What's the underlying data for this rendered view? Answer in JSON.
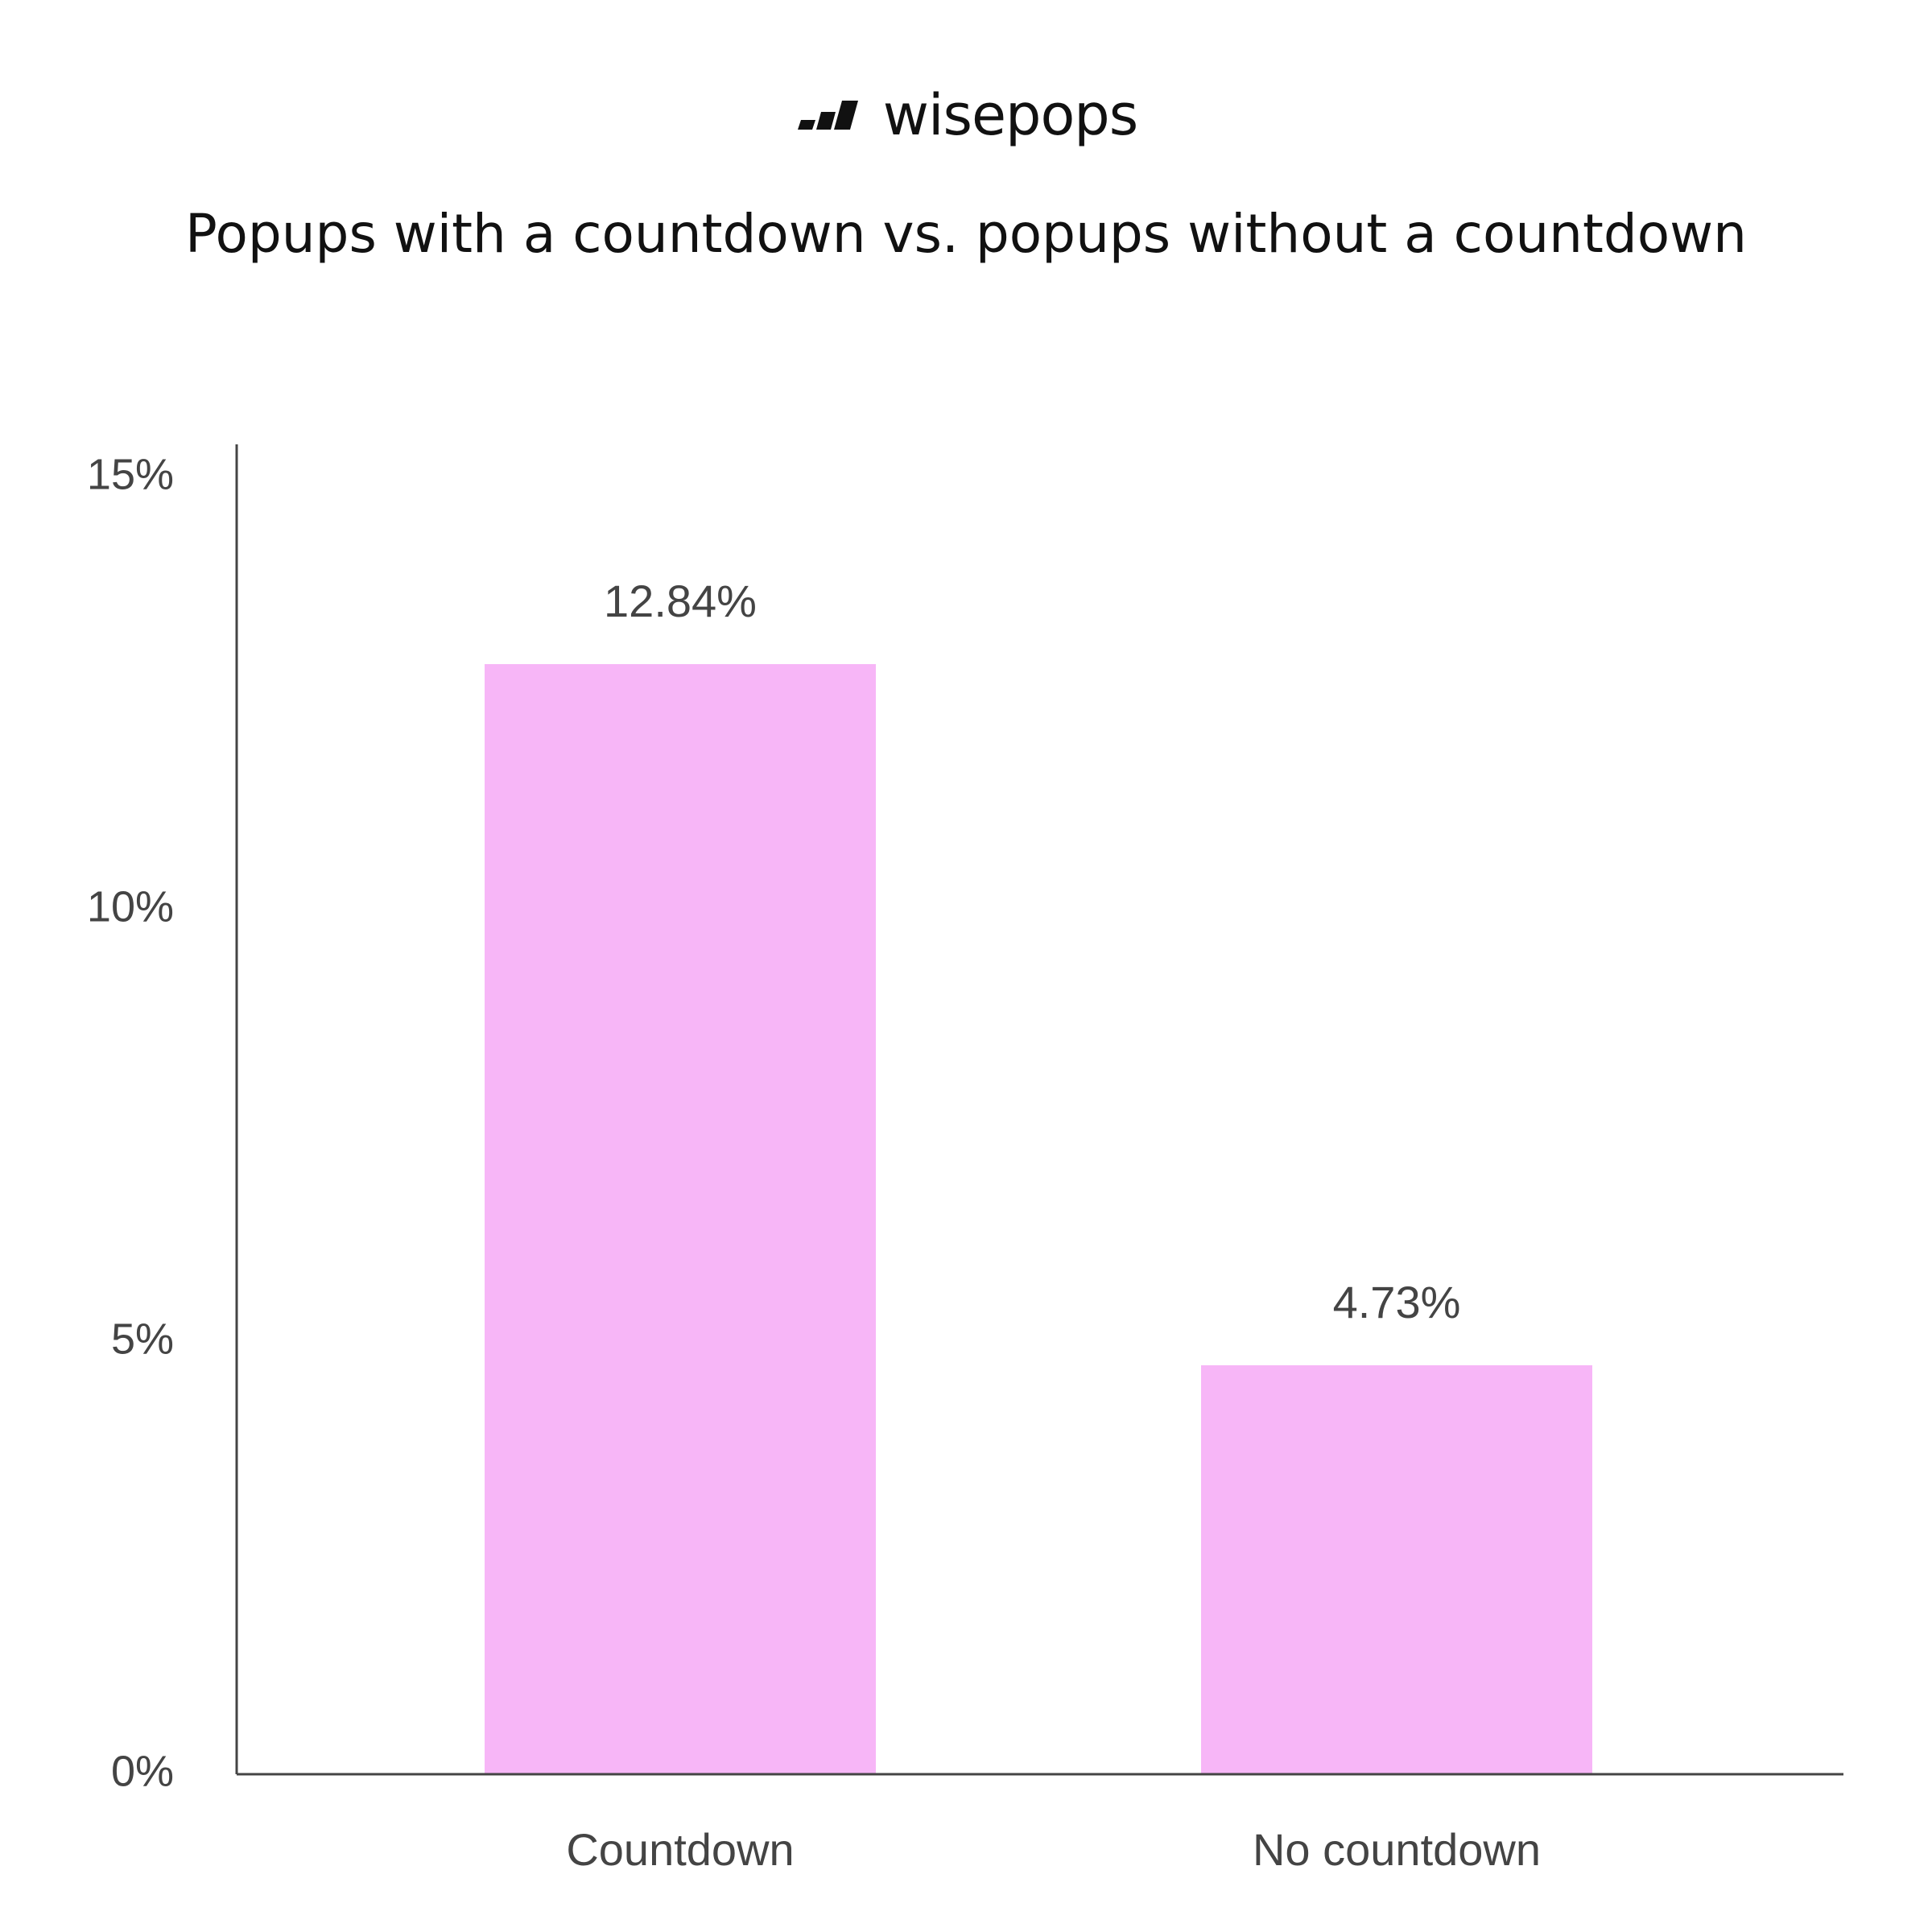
{
  "brand": {
    "name": "wisepops",
    "logo_icon": "wisepops-logo-icon",
    "text_color": "#111111"
  },
  "chart_data": {
    "type": "bar",
    "title": "Popups with a countdown vs. popups without a countdown",
    "categories": [
      "Countdown",
      "No countdown"
    ],
    "values": [
      12.84,
      4.73
    ],
    "value_labels": [
      "12.84%",
      "4.73%"
    ],
    "ylim": [
      0,
      15
    ],
    "yticks": [
      0,
      5,
      10,
      15
    ],
    "ytick_labels": [
      "0%",
      "5%",
      "10%",
      "15%"
    ],
    "grid": false,
    "legend": "none",
    "bar_color": "#f7b6f7",
    "axis_color": "#444444",
    "label_color": "#444444"
  }
}
